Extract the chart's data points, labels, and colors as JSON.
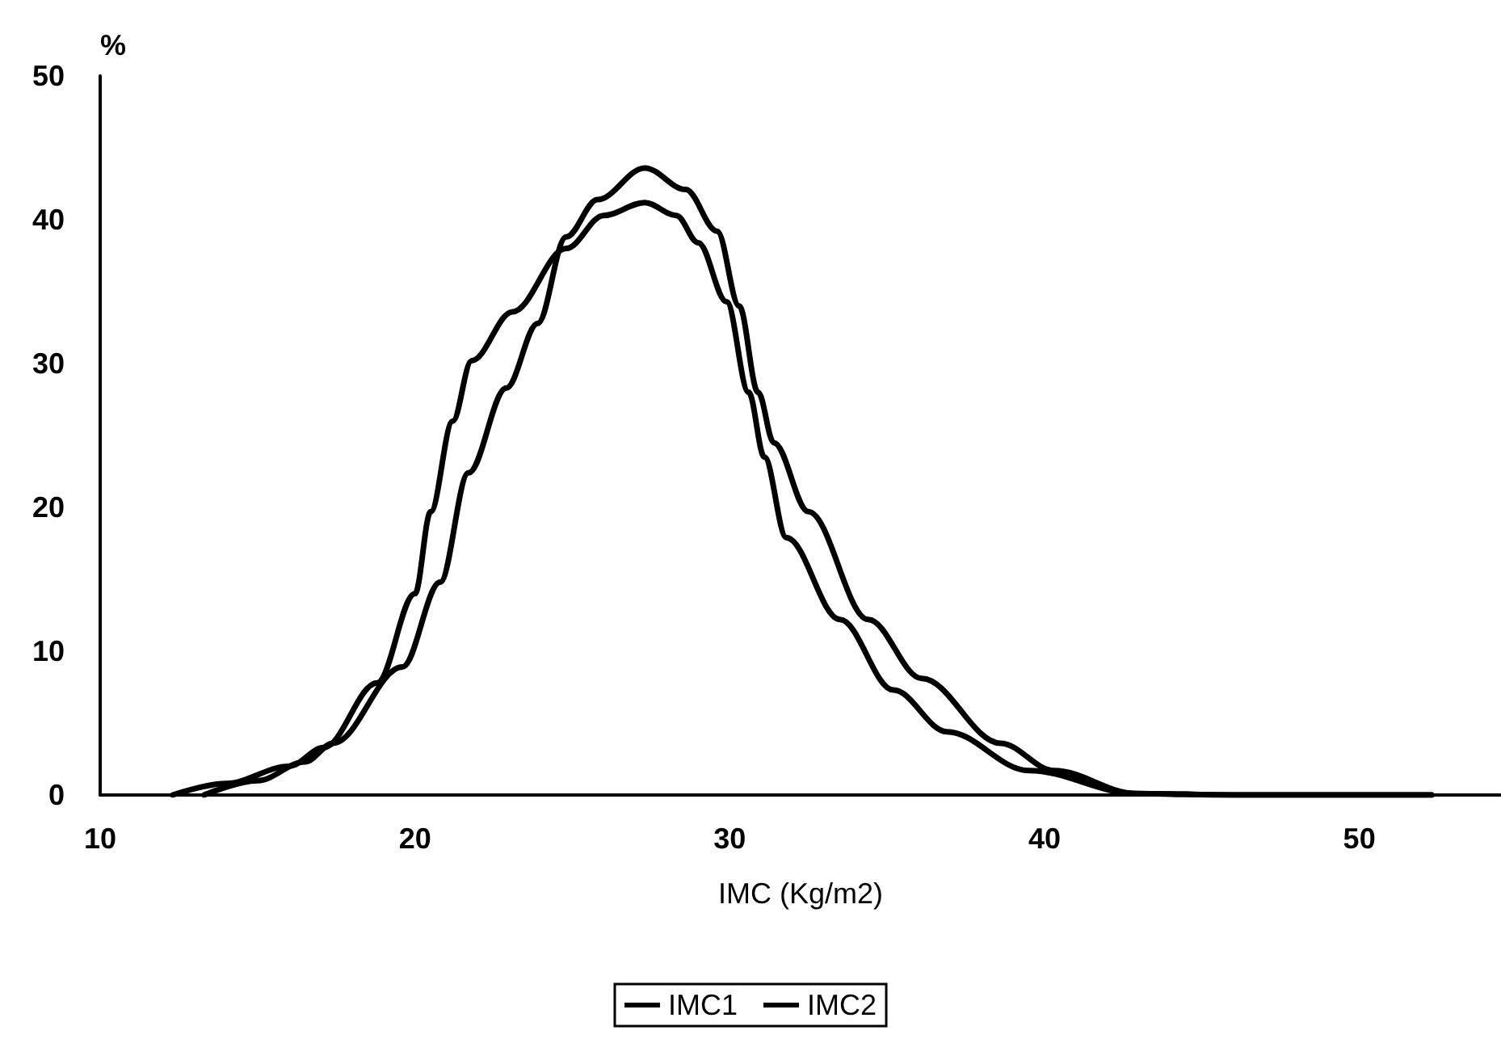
{
  "chart_data": {
    "type": "line",
    "xlabel": "IMC (Kg/m2)",
    "ylabel": "%",
    "xlim": [
      10,
      54.5
    ],
    "xticks": [
      10,
      20,
      30,
      40,
      50
    ],
    "ylim": [
      0,
      50
    ],
    "yticks": [
      0,
      10,
      20,
      30,
      40,
      50
    ],
    "grid": false,
    "legend": "bottom",
    "marker": "none",
    "line_style": "solid",
    "series": [
      {
        "name": "IMC1",
        "color": "#000000",
        "x": [
          12.3,
          14,
          16,
          17.1,
          18.8,
          20,
          20.5,
          21.2,
          21.8,
          23.1,
          24.8,
          26,
          27.3,
          28.3,
          29,
          29.9,
          30.6,
          31.1,
          31.8,
          33.5,
          35.2,
          36.9,
          39.5,
          42.9,
          46,
          52.3
        ],
        "values": [
          0,
          0.8,
          2,
          3.3,
          7.8,
          14,
          19.7,
          26,
          30.2,
          33.6,
          38,
          40.3,
          41.2,
          40.3,
          38.4,
          34.3,
          28,
          23.5,
          17.9,
          12.2,
          7.3,
          4.4,
          1.7,
          0.1,
          0,
          0
        ]
      },
      {
        "name": "IMC2",
        "color": "#000000",
        "x": [
          13.3,
          15,
          16.5,
          17.4,
          19.6,
          20.8,
          21.7,
          22.9,
          23.9,
          24.8,
          25.8,
          27.3,
          28.6,
          29.6,
          30.3,
          30.9,
          31.4,
          32.5,
          34.4,
          36.1,
          38.6,
          40.3,
          42.9,
          46,
          52.3
        ],
        "values": [
          0,
          1,
          2.3,
          3.6,
          8.9,
          14.8,
          22.4,
          28.3,
          32.8,
          38.8,
          41.4,
          43.6,
          42.1,
          39.2,
          34,
          28,
          24.5,
          19.7,
          12.2,
          8.1,
          3.6,
          1.7,
          0.1,
          0,
          0
        ]
      }
    ]
  }
}
